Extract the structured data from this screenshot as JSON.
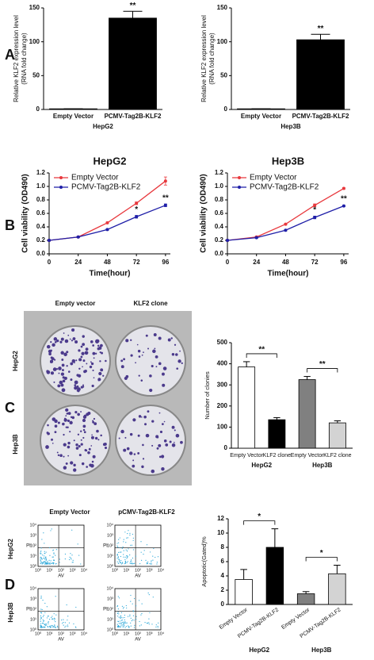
{
  "panel_labels": [
    "A",
    "B",
    "C",
    "D"
  ],
  "colony": {
    "columns": [
      "Empty  vector",
      "KLF2 clone"
    ],
    "rows": [
      "HepG2",
      "Hep3B"
    ]
  },
  "flow": {
    "columns": [
      "Empty Vector",
      "pCMV-Tag2B-KLF2"
    ],
    "rows": [
      "HepG2",
      "Hep3B"
    ],
    "x_label": "AV",
    "y_label": "PI",
    "ticks": [
      "10⁰",
      "10¹",
      "10²",
      "10³",
      "10⁴"
    ]
  },
  "chart_data": [
    {
      "type": "bar",
      "y_label": [
        "Relative KLF2 expression level",
        "(RNA fold change)"
      ],
      "x_label": "HepG2",
      "categories": [
        "Empty Vector",
        "PCMV-Tag2B-KLF2"
      ],
      "values": [
        1,
        135
      ],
      "errors": [
        0,
        10
      ],
      "color": "#000000",
      "ylim": [
        0,
        150
      ],
      "yticks": [
        0,
        50,
        100,
        150
      ],
      "annotations": [
        {
          "text": "**",
          "category": 1
        }
      ]
    },
    {
      "type": "bar",
      "y_label": [
        "Relative KLF2 expression level",
        "(RNA fold change)"
      ],
      "x_label": "Hep3B",
      "categories": [
        "Empty Vector",
        "PCMV-Tag2B-KLF2"
      ],
      "values": [
        1,
        103
      ],
      "errors": [
        0,
        8
      ],
      "color": "#000000",
      "ylim": [
        0,
        150
      ],
      "yticks": [
        0,
        50,
        100,
        150
      ],
      "annotations": [
        {
          "text": "**",
          "category": 1
        }
      ]
    },
    {
      "type": "line",
      "title": "HepG2",
      "x_label": "Time(hour)",
      "y_label": "Cell viability (OD490)",
      "x": [
        0,
        24,
        48,
        72,
        96
      ],
      "xlim": [
        0,
        100
      ],
      "xticks": [
        0,
        24,
        48,
        72,
        96
      ],
      "ylim": [
        0,
        1.2
      ],
      "yticks": [
        {
          "value": 0,
          "label": "0.0"
        },
        0.2,
        0.4,
        0.6,
        0.8,
        {
          "value": 1,
          "label": "1.0"
        },
        1.2
      ],
      "legend": "upper left",
      "series": [
        {
          "name": "Empty Vector",
          "color": "#e8383d",
          "values": [
            0.2,
            0.25,
            0.46,
            0.75,
            1.08
          ],
          "errors": [
            0.01,
            0.01,
            0.01,
            0.02,
            0.06
          ]
        },
        {
          "name": "PCMV-Tag2B-KLF2",
          "color": "#1f1fa8",
          "values": [
            0.2,
            0.25,
            0.36,
            0.55,
            0.72
          ],
          "errors": [
            0.01,
            0.01,
            0.01,
            0.02,
            0.02
          ]
        }
      ],
      "annotations": [
        {
          "text": "*",
          "x": 72
        },
        {
          "text": "**",
          "x": 96
        }
      ]
    },
    {
      "type": "line",
      "title": "Hep3B",
      "x_label": "Time(hour)",
      "y_label": "Cell viability (OD490)",
      "x": [
        0,
        24,
        48,
        72,
        96
      ],
      "xlim": [
        0,
        100
      ],
      "xticks": [
        0,
        24,
        48,
        72,
        96
      ],
      "ylim": [
        0,
        1.2
      ],
      "yticks": [
        {
          "value": 0,
          "label": "0.0"
        },
        0.2,
        0.4,
        0.6,
        0.8,
        {
          "value": 1,
          "label": "1.0"
        },
        1.2
      ],
      "legend": "upper left",
      "series": [
        {
          "name": "Empty Vector",
          "color": "#e8383d",
          "values": [
            0.2,
            0.25,
            0.44,
            0.72,
            0.97
          ],
          "errors": [
            0.01,
            0.01,
            0.01,
            0.02,
            0.01
          ]
        },
        {
          "name": "PCMV-Tag2B-KLF2",
          "color": "#1f1fa8",
          "values": [
            0.2,
            0.24,
            0.35,
            0.54,
            0.71
          ],
          "errors": [
            0.01,
            0.01,
            0.01,
            0.02,
            0.01
          ]
        }
      ],
      "annotations": [
        {
          "text": "*",
          "x": 72
        },
        {
          "text": "**",
          "x": 96
        }
      ]
    },
    {
      "type": "bar",
      "y_label": "Number of clonies",
      "categories": [
        "Empty Vector",
        "KLF2 clone",
        "Empty Vector",
        "KLF2 clone"
      ],
      "values": [
        385,
        135,
        325,
        120
      ],
      "errors": [
        25,
        10,
        15,
        10
      ],
      "colors": [
        "#ffffff",
        "#000000",
        "#808080",
        "#d3d3d3"
      ],
      "ylim": [
        0,
        500
      ],
      "yticks": [
        0,
        100,
        200,
        300,
        400,
        500
      ],
      "groups": [
        {
          "label": "HepG2",
          "from": 0,
          "to": 1
        },
        {
          "label": "Hep3B",
          "from": 2,
          "to": 3
        }
      ],
      "annotations": [
        {
          "text": "**",
          "from": 0,
          "to": 1
        },
        {
          "text": "**",
          "from": 2,
          "to": 3
        }
      ]
    },
    {
      "type": "bar",
      "y_label": "Apoptotic(Gated)%",
      "categories": [
        "Empty Vector",
        "PCMV-Tag2B-KLF2",
        "Empty Vector",
        "PCMV-Tag2B-KLF2"
      ],
      "values": [
        3.5,
        8,
        1.5,
        4.3
      ],
      "errors": [
        1.4,
        2.6,
        0.3,
        1.2
      ],
      "colors": [
        "#ffffff",
        "#000000",
        "#808080",
        "#d3d3d3"
      ],
      "ylim": [
        0,
        12
      ],
      "yticks": [
        0,
        2,
        4,
        6,
        8,
        10,
        12
      ],
      "groups": [
        {
          "label": "HepG2",
          "from": 0,
          "to": 1
        },
        {
          "label": "Hep3B",
          "from": 2,
          "to": 3
        }
      ],
      "annotations": [
        {
          "text": "*",
          "from": 0,
          "to": 1
        },
        {
          "text": "*",
          "from": 2,
          "to": 3
        }
      ]
    }
  ]
}
